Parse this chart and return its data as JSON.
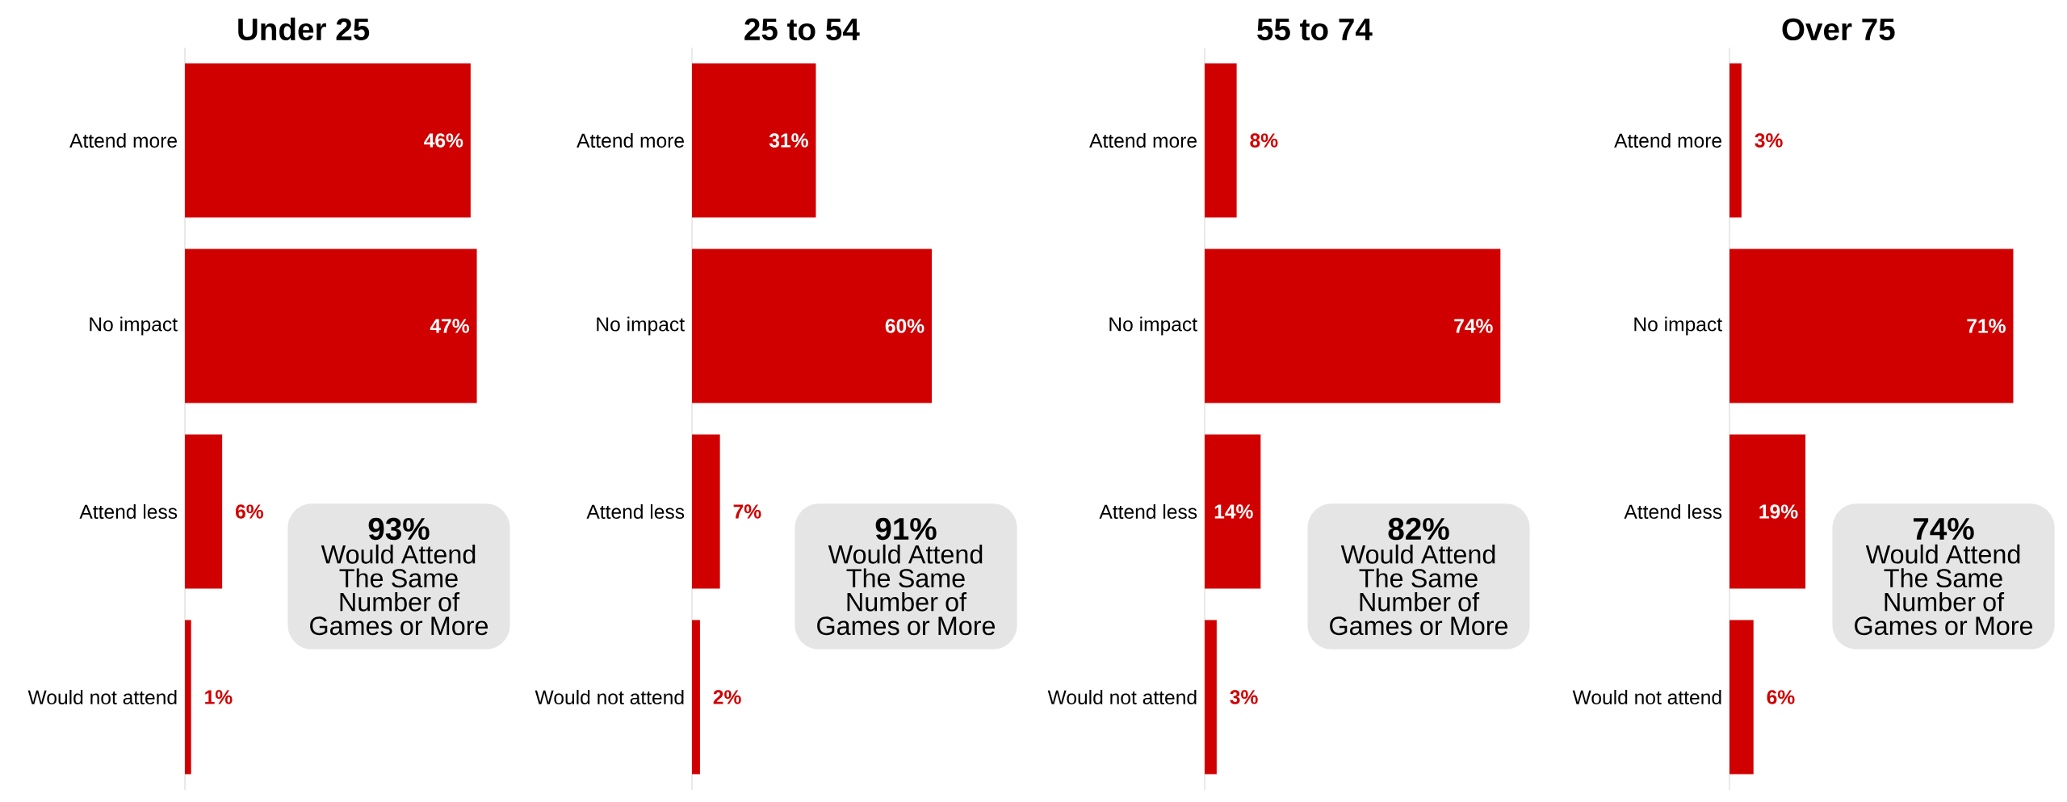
{
  "chart_data": [
    {
      "type": "bar",
      "orientation": "horizontal",
      "title": "Under 25",
      "categories": [
        "Attend more",
        "No impact",
        "Attend less",
        "Would not attend"
      ],
      "values": [
        46,
        47,
        6,
        1
      ],
      "value_labels": [
        "46%",
        "47%",
        "6%",
        "1%"
      ],
      "color": "#d10000",
      "tick_labels": "y",
      "annotations": [
        "93%",
        "Would Attend The Same Number of Games or More"
      ]
    },
    {
      "type": "bar",
      "orientation": "horizontal",
      "title": "25 to 54",
      "categories": [
        "Attend more",
        "No impact",
        "Attend less",
        "Would not attend"
      ],
      "values": [
        31,
        60,
        7,
        2
      ],
      "value_labels": [
        "31%",
        "60%",
        "7%",
        "2%"
      ],
      "color": "#d10000",
      "tick_labels": "y",
      "annotations": [
        "91%",
        "Would Attend The Same Number of Games or More"
      ]
    },
    {
      "type": "bar",
      "orientation": "horizontal",
      "title": "55 to 74",
      "categories": [
        "Attend more",
        "No impact",
        "Attend less",
        "Would not attend"
      ],
      "values": [
        8,
        74,
        14,
        3
      ],
      "value_labels": [
        "8%",
        "74%",
        "14%",
        "3%"
      ],
      "color": "#d10000",
      "tick_labels": "y",
      "annotations": [
        "82%",
        "Would Attend The Same Number of Games or More"
      ]
    },
    {
      "type": "bar",
      "orientation": "horizontal",
      "title": "Over 75",
      "categories": [
        "Attend more",
        "No impact",
        "Attend less",
        "Would not attend"
      ],
      "values": [
        3,
        71,
        19,
        6
      ],
      "value_labels": [
        "3%",
        "71%",
        "19%",
        "6%"
      ],
      "color": "#d10000",
      "tick_labels": "y",
      "annotations": [
        "74%",
        "Would Attend The Same Number of Games or More"
      ]
    }
  ]
}
